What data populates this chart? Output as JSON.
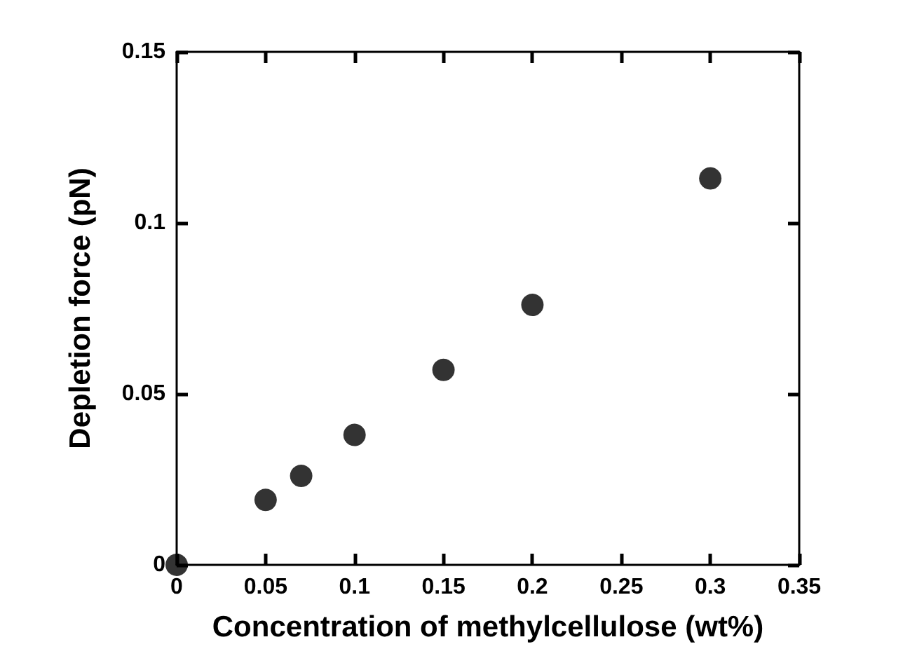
{
  "chart_data": {
    "type": "scatter",
    "xlabel": "Concentration of methylcellulose (wt%)",
    "ylabel": "Depletion force (pN)",
    "x": [
      0,
      0.05,
      0.07,
      0.1,
      0.15,
      0.2,
      0.3
    ],
    "values": [
      0,
      0.019,
      0.026,
      0.038,
      0.057,
      0.076,
      0.113
    ],
    "color": "#000000",
    "marker": "circle",
    "xlim": [
      0,
      0.35
    ],
    "xticks": [
      0,
      0.05,
      0.1,
      0.15,
      0.2,
      0.25,
      0.3,
      0.35
    ],
    "ylim": [
      0,
      0.15
    ],
    "yticks": [
      0,
      0.05,
      0.1,
      0.15
    ],
    "grid": false
  }
}
